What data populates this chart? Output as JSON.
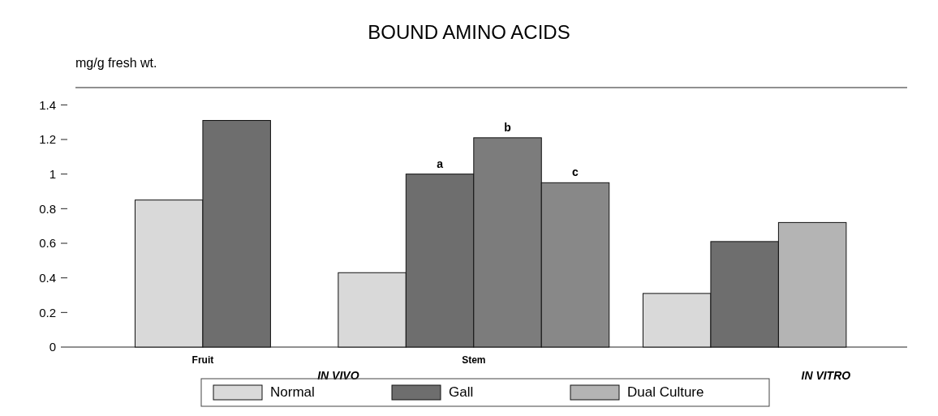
{
  "chart_data": {
    "type": "bar",
    "title": "BOUND AMINO ACIDS",
    "ylabel": "mg/g fresh wt.",
    "categories": [
      "Fruit",
      "Stem",
      null
    ],
    "series": [
      {
        "name": "Normal",
        "color": "#d9d9d9",
        "values": [
          0.85,
          0.43,
          0.31
        ]
      },
      {
        "name": "Gall",
        "color": "#6e6e6e",
        "values": [
          1.31,
          1.0,
          0.61
        ]
      },
      {
        "color": "#7c7c7c",
        "values": [
          null,
          1.21,
          null
        ]
      },
      {
        "color": "#888888",
        "values": [
          null,
          0.95,
          null
        ]
      },
      {
        "name": "Dual Culture",
        "color": "#b4b4b4",
        "values": [
          null,
          null,
          0.72
        ]
      }
    ],
    "ylim": [
      0,
      1.5
    ],
    "yticks": [
      0,
      0.2,
      0.4,
      0.6,
      0.8,
      1,
      1.2,
      1.4
    ],
    "annotations": [
      {
        "text": "a",
        "y": 1.0
      },
      {
        "text": "b",
        "y": 1.21
      },
      {
        "text": "c",
        "y": 0.95
      },
      "IN VIVO",
      "IN VITRO"
    ],
    "legend": "bottom"
  }
}
